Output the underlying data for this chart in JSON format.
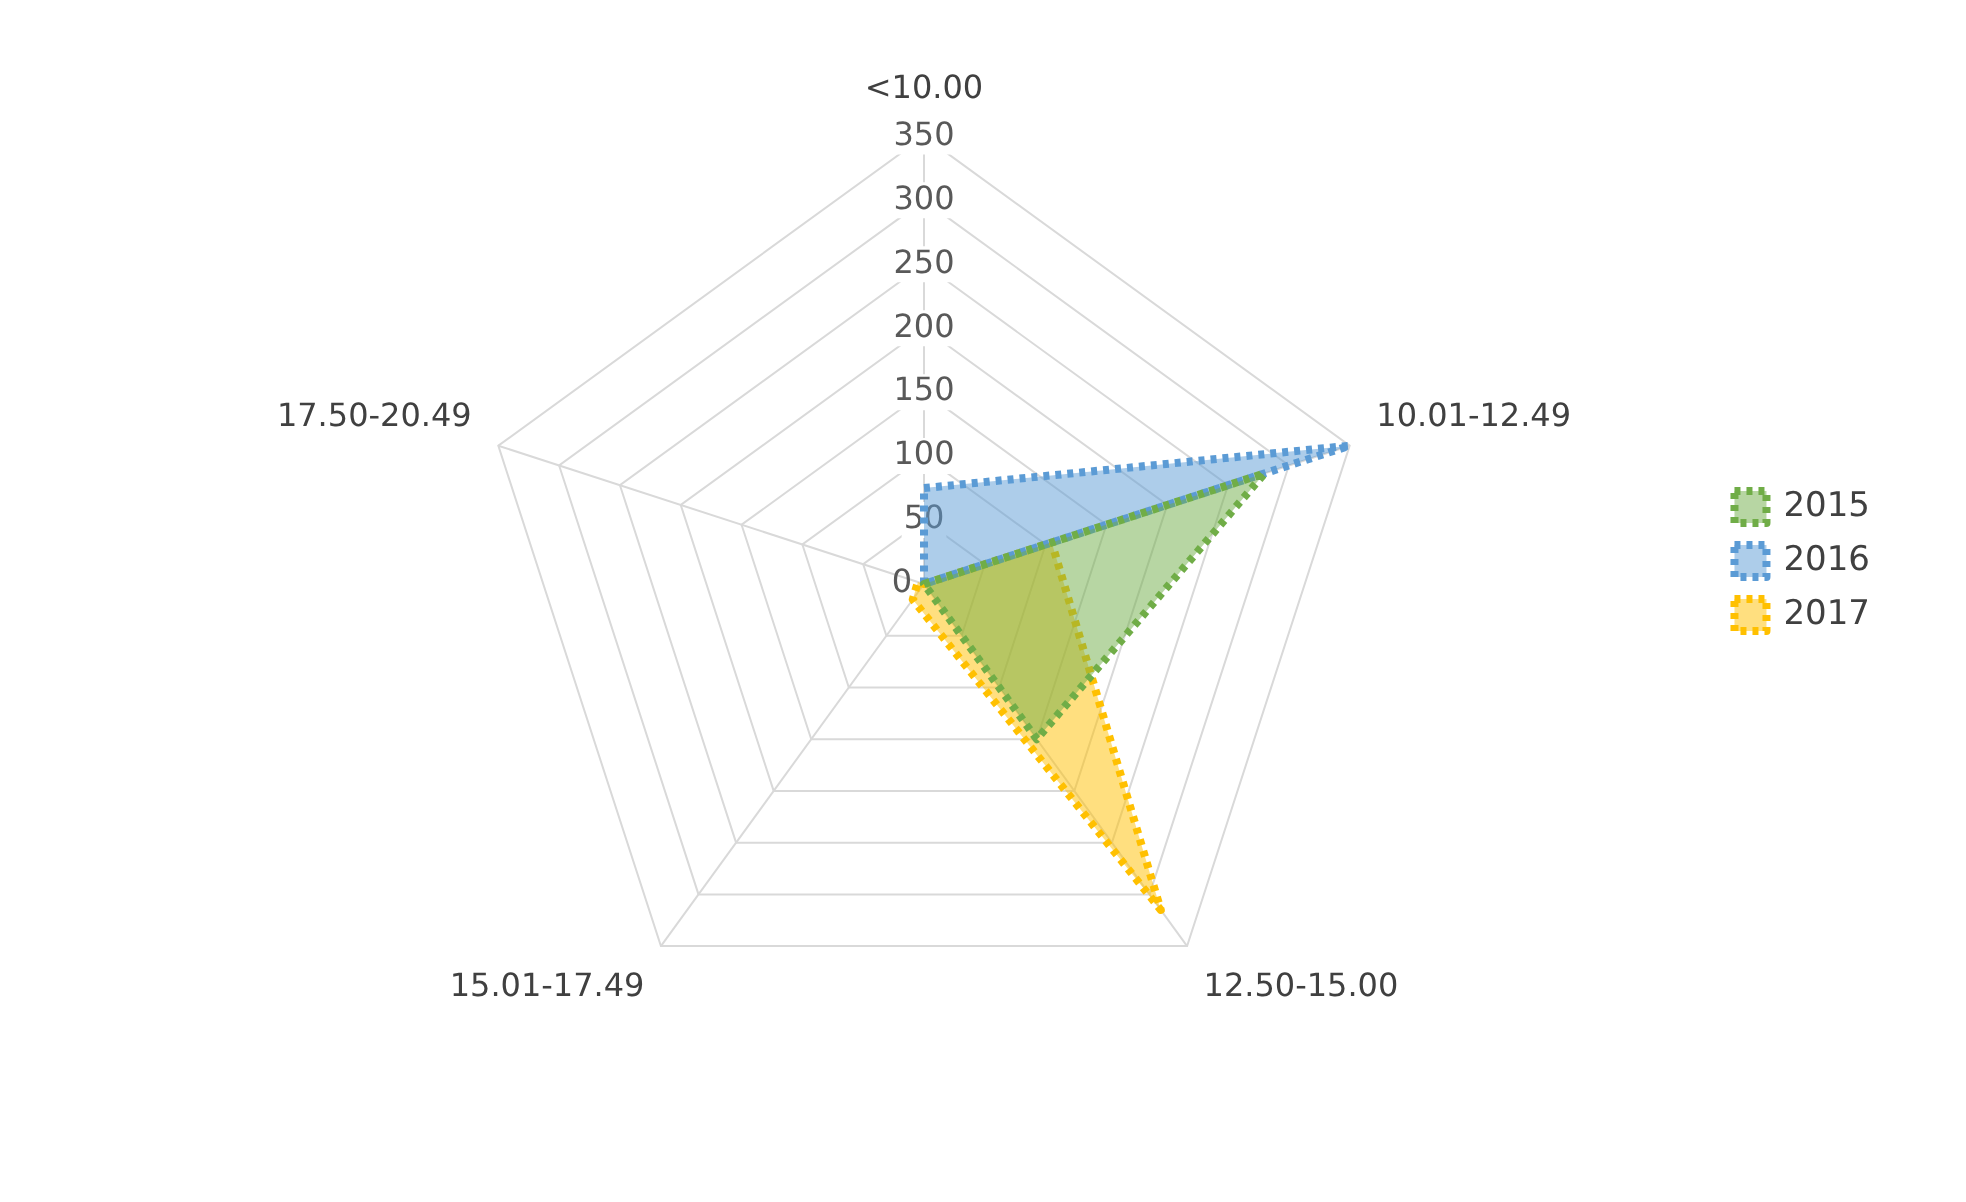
{
  "chart_data": {
    "type": "radar",
    "categories": [
      "<10.00",
      "10.01-12.49",
      "12.50-15.00",
      "15.01-17.49",
      "17.50-20.49"
    ],
    "series": [
      {
        "name": "2015",
        "color": "#70ad47",
        "values": [
          0,
          280,
          150,
          0,
          0
        ]
      },
      {
        "name": "2016",
        "color": "#5b9bd5",
        "values": [
          75,
          350,
          0,
          0,
          0
        ]
      },
      {
        "name": "2017",
        "color": "#ffc000",
        "values": [
          0,
          105,
          315,
          15,
          5
        ]
      }
    ],
    "ylim": [
      0,
      350
    ],
    "yticks": [
      0,
      50,
      100,
      150,
      200,
      250,
      300,
      350
    ],
    "grid": true,
    "legend": "right",
    "line_style": "dotted",
    "marker": "none"
  }
}
